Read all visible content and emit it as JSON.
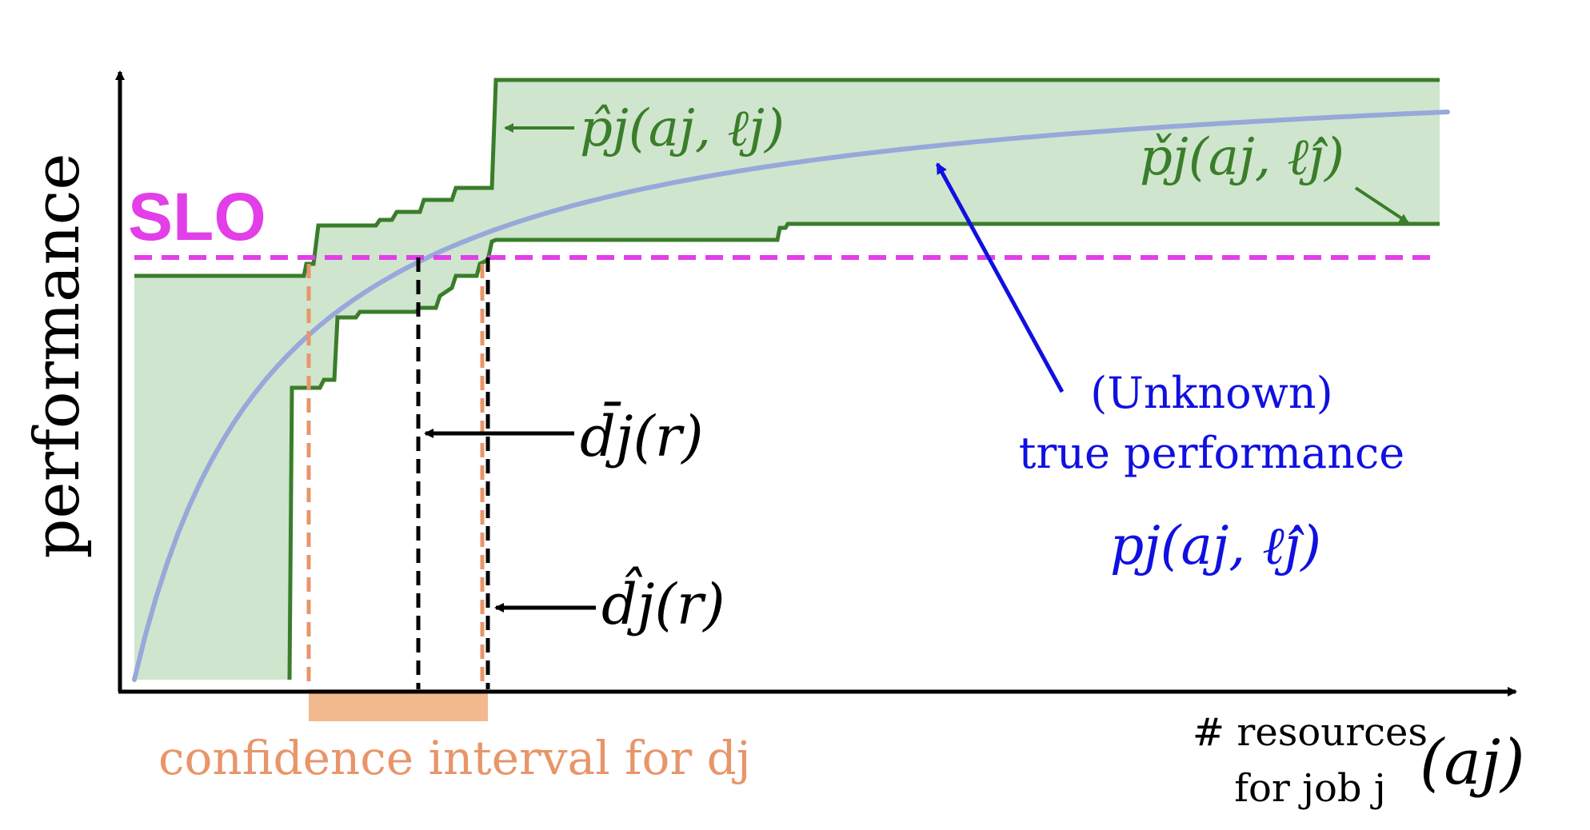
{
  "axes": {
    "ylabel": "performance",
    "xlabel_line1": "# resources",
    "xlabel_line2": "for job j",
    "xlabel_var": "(aj)"
  },
  "slo": {
    "label": "SLO",
    "color": "#e23fe8"
  },
  "curves": {
    "upper_bound_label": "p̂j(aj, ℓj)",
    "lower_bound_label": "p̌j(aj, ℓ̂j)",
    "bound_color": "#3a7d2a",
    "band_fill": "#cfe5ce",
    "true_curve_color": "#98a8da"
  },
  "annotations": {
    "true_line1": "(Unknown)",
    "true_line2": "true performance",
    "true_formula": "pj(aj, ℓ̂j)",
    "true_color": "#1010e0",
    "dbar_label": "d̄j(r)",
    "dhat_label": "d̂j(r)",
    "ci_label": "confidence interval for dj",
    "ci_color": "#e8956a"
  }
}
